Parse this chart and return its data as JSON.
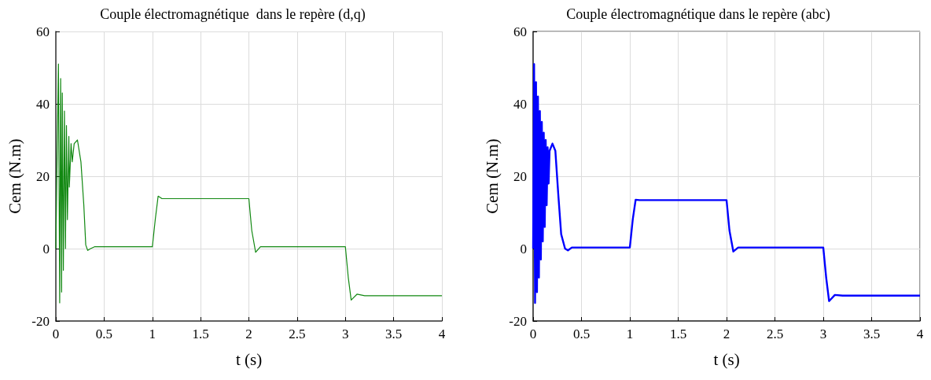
{
  "chart_data": [
    {
      "type": "line",
      "title": "Couple électromagnétique  dans le repère (d,q)",
      "xlabel": "t (s)",
      "ylabel": "Cem (N.m)",
      "xlim": [
        0,
        4
      ],
      "xticks": [
        0,
        0.5,
        1,
        1.5,
        2,
        2.5,
        3,
        3.5,
        4
      ],
      "ylim": [
        -20,
        60
      ],
      "yticks": [
        -20,
        0,
        20,
        40,
        60
      ],
      "grid": true,
      "series": [
        {
          "color": "#118811",
          "x": [
            0,
            0.027,
            0.04,
            0.05,
            0.06,
            0.067,
            0.078,
            0.089,
            0.1,
            0.11,
            0.12,
            0.135,
            0.14,
            0.158,
            0.17,
            0.19,
            0.224,
            0.26,
            0.29,
            0.31,
            0.33,
            0.36,
            0.4,
            1.0,
            1.03,
            1.06,
            1.1,
            2.0,
            2.03,
            2.07,
            2.12,
            3.0,
            3.03,
            3.06,
            3.12,
            3.2,
            4.0
          ],
          "values": [
            0,
            51,
            -15,
            47,
            -12,
            43,
            -6,
            38,
            0,
            34,
            8,
            31,
            17,
            29,
            24,
            29,
            30,
            24,
            12,
            1,
            -0.5,
            0,
            0.5,
            0.5,
            8,
            14.5,
            13.8,
            13.8,
            5,
            -1,
            0.5,
            0.5,
            -8,
            -14.2,
            -12.6,
            -13,
            -13
          ]
        }
      ]
    },
    {
      "type": "line",
      "title": "Couple électromagnétique dans le repère (abc)",
      "xlabel": "t (s)",
      "ylabel": "Cem (N.m)",
      "xlim": [
        0,
        4
      ],
      "xticks": [
        0,
        0.5,
        1,
        1.5,
        2,
        2.5,
        3,
        3.5,
        4
      ],
      "ylim": [
        -20,
        60
      ],
      "yticks": [
        -20,
        0,
        20,
        40,
        60
      ],
      "grid": true,
      "series": [
        {
          "color": "#0000ff",
          "x": [
            0,
            0.01,
            0.02,
            0.03,
            0.04,
            0.05,
            0.06,
            0.07,
            0.08,
            0.09,
            0.1,
            0.11,
            0.12,
            0.13,
            0.14,
            0.15,
            0.16,
            0.17,
            0.2,
            0.23,
            0.26,
            0.29,
            0.33,
            0.36,
            0.4,
            1.0,
            1.03,
            1.06,
            1.1,
            2.0,
            2.03,
            2.07,
            2.12,
            3.0,
            3.03,
            3.06,
            3.12,
            3.2,
            4.0
          ],
          "values": [
            0,
            51,
            -15,
            46,
            -12,
            42,
            -8,
            38,
            -3,
            35,
            2,
            32,
            6,
            30,
            12,
            28,
            18,
            27,
            29,
            27,
            15,
            4,
            0,
            -0.5,
            0.3,
            0.3,
            8,
            13.5,
            13.4,
            13.4,
            5,
            -0.8,
            0.3,
            0.3,
            -8,
            -14.5,
            -12.8,
            -13,
            -13
          ]
        }
      ]
    }
  ]
}
